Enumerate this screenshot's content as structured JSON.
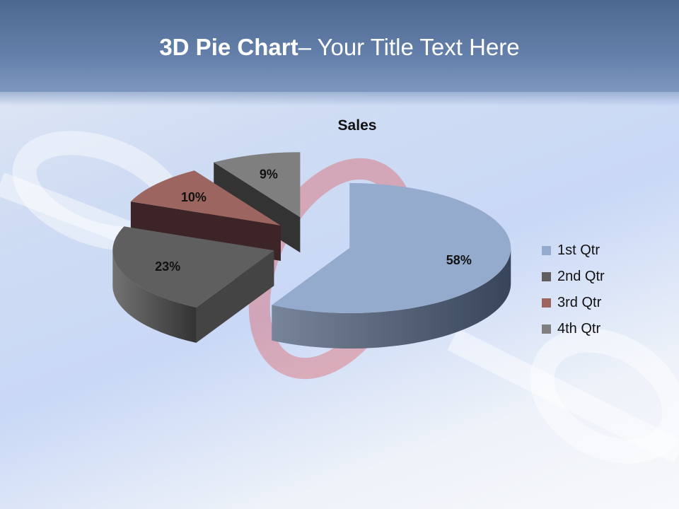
{
  "slide": {
    "title_bold": "3D Pie Chart",
    "title_rest": "– Your Title Text Here"
  },
  "chart_data": {
    "type": "pie",
    "three_d": true,
    "exploded": true,
    "title": "Sales",
    "categories": [
      "1st Qtr",
      "2nd Qtr",
      "3rd Qtr",
      "4th Qtr"
    ],
    "values": [
      58,
      23,
      10,
      9
    ],
    "data_labels": [
      "58%",
      "23%",
      "10%",
      "9%"
    ],
    "colors": [
      "#95abcd",
      "#5f5f5f",
      "#9c6560",
      "#7f7f7f"
    ],
    "side_colors": [
      "#4a5b78",
      "#444444",
      "#3d2426",
      "#333333"
    ],
    "legend_position": "right"
  }
}
